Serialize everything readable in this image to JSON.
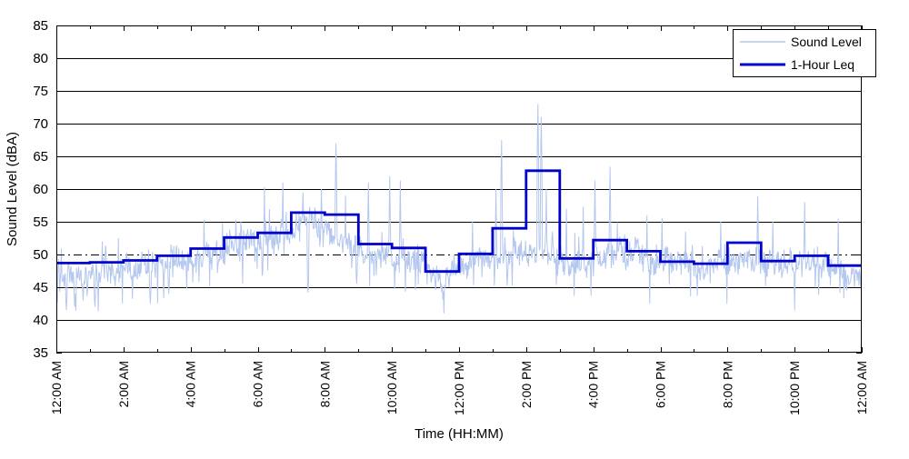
{
  "chart_data": {
    "type": "line",
    "title": "",
    "xlabel": "Time (HH:MM)",
    "ylabel": "Sound Level (dBA)",
    "xlim_hours": [
      0,
      24
    ],
    "ylim": [
      35,
      85
    ],
    "y_ticks": [
      35,
      40,
      45,
      50,
      55,
      60,
      65,
      70,
      75,
      80,
      85
    ],
    "x_tick_hours": [
      0,
      2,
      4,
      6,
      8,
      10,
      12,
      14,
      16,
      18,
      20,
      22,
      24
    ],
    "x_tick_labels": [
      "12:00 AM",
      "2:00 AM",
      "4:00 AM",
      "6:00 AM",
      "8:00 AM",
      "10:00 AM",
      "12:00 PM",
      "2:00 PM",
      "4:00 PM",
      "6:00 PM",
      "8:00 PM",
      "10:00 PM",
      "12:00 AM"
    ],
    "x_minor_tick_every_hours": 1,
    "grid": {
      "solid_levels": [
        40,
        45,
        55,
        60,
        65,
        70,
        75,
        80
      ],
      "dashdot_level": 50,
      "color": "#000000"
    },
    "legend": {
      "position": "top-right",
      "entries": [
        {
          "label": "Sound Level",
          "color": "#b4c7ef",
          "line_width": 1.4
        },
        {
          "label": "1-Hour Leq",
          "color": "#0000cc",
          "line_width": 3
        }
      ]
    },
    "series": [
      {
        "name": "Sound Level",
        "style": "raw-minute-data",
        "color": "#b4c7ef",
        "samples_per_hour": 60,
        "hourly_median": [
          47.6,
          47.9,
          48.2,
          48.9,
          50.0,
          51.6,
          52.4,
          55.3,
          52.8,
          50.2,
          49.4,
          46.6,
          48.9,
          50.6,
          50.8,
          48.4,
          50.3,
          49.3,
          48.0,
          47.8,
          49.8,
          48.1,
          48.7,
          47.1
        ],
        "jitter_dba": 1.7,
        "seed": 12,
        "notable_peaks": [
          {
            "t": 1.85,
            "v": 52.5
          },
          {
            "t": 4.4,
            "v": 55.3
          },
          {
            "t": 4.95,
            "v": 54.8
          },
          {
            "t": 5.5,
            "v": 55.0
          },
          {
            "t": 6.2,
            "v": 60.3
          },
          {
            "t": 6.75,
            "v": 61.0
          },
          {
            "t": 7.35,
            "v": 59.5
          },
          {
            "t": 7.9,
            "v": 60.0
          },
          {
            "t": 8.34,
            "v": 67.0
          },
          {
            "t": 8.62,
            "v": 59.0
          },
          {
            "t": 9.3,
            "v": 61.0
          },
          {
            "t": 9.93,
            "v": 62.0
          },
          {
            "t": 10.25,
            "v": 61.3
          },
          {
            "t": 12.4,
            "v": 55.0
          },
          {
            "t": 13.1,
            "v": 60.0
          },
          {
            "t": 13.27,
            "v": 67.5
          },
          {
            "t": 14.35,
            "v": 73.0
          },
          {
            "t": 14.45,
            "v": 71.0
          },
          {
            "t": 14.6,
            "v": 60.0
          },
          {
            "t": 15.2,
            "v": 57.0
          },
          {
            "t": 15.7,
            "v": 57.3
          },
          {
            "t": 16.05,
            "v": 61.3
          },
          {
            "t": 16.5,
            "v": 63.4
          },
          {
            "t": 17.6,
            "v": 56.0
          },
          {
            "t": 18.05,
            "v": 55.6
          },
          {
            "t": 19.8,
            "v": 55.0
          },
          {
            "t": 20.9,
            "v": 58.9
          },
          {
            "t": 21.35,
            "v": 55.0
          },
          {
            "t": 22.3,
            "v": 58.0
          },
          {
            "t": 23.3,
            "v": 55.5
          }
        ],
        "notable_dips": [
          {
            "t": 0.3,
            "v": 41.5
          },
          {
            "t": 0.55,
            "v": 42.0
          },
          {
            "t": 0.8,
            "v": 43.0
          },
          {
            "t": 1.15,
            "v": 42.0
          },
          {
            "t": 2.8,
            "v": 42.5
          },
          {
            "t": 3.35,
            "v": 44.0
          },
          {
            "t": 7.5,
            "v": 44.2
          },
          {
            "t": 8.95,
            "v": 45.5
          },
          {
            "t": 11.3,
            "v": 44.6
          },
          {
            "t": 11.7,
            "v": 45.0
          },
          {
            "t": 23.55,
            "v": 44.5
          }
        ]
      },
      {
        "name": "1-Hour Leq",
        "style": "step",
        "color": "#0000cc",
        "hourly_values": [
          48.7,
          48.8,
          49.1,
          49.8,
          50.9,
          52.6,
          53.3,
          56.4,
          56.1,
          51.6,
          51.0,
          47.4,
          50.1,
          54.0,
          62.8,
          49.4,
          52.2,
          50.5,
          48.9,
          48.6,
          51.8,
          49.0,
          49.8,
          48.3
        ]
      }
    ]
  }
}
